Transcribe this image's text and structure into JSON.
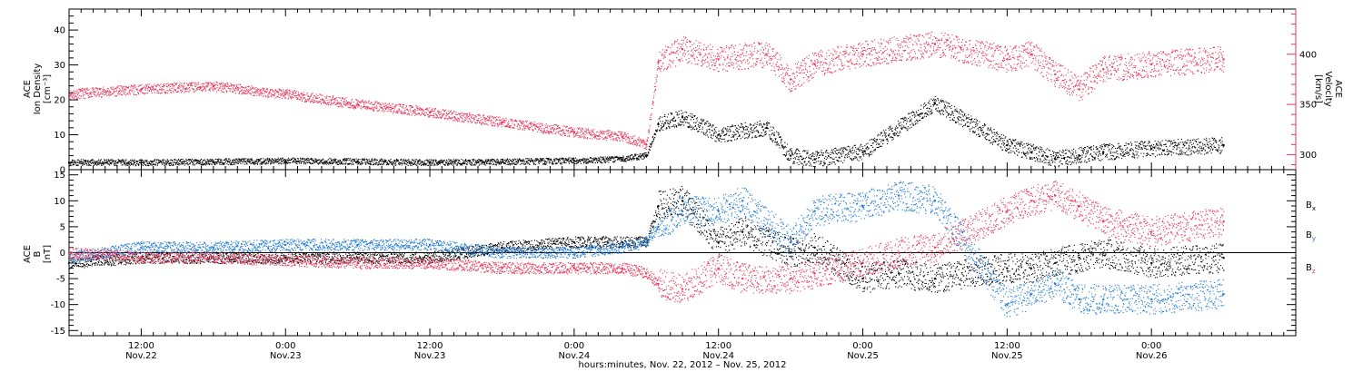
{
  "chart_data": [
    {
      "type": "scatter",
      "panel": "top",
      "left_axis": {
        "label_lines": [
          "ACE",
          "Ion Density",
          "[cm⁻³]"
        ],
        "ylim": [
          0,
          46
        ],
        "ticks": [
          0,
          10,
          20,
          30,
          40
        ],
        "tick_labels": [
          "0",
          "10",
          "20",
          "30",
          "40"
        ]
      },
      "right_axis": {
        "label_lines": [
          "ACE",
          "Velocity",
          "[km/s]"
        ],
        "ylim": [
          285,
          445
        ],
        "ticks": [
          300,
          350,
          400
        ],
        "tick_labels": [
          "300",
          "350",
          "400"
        ],
        "color": "#e8345a"
      },
      "x": [
        6,
        12,
        18,
        24,
        30,
        36,
        42,
        48,
        52,
        54,
        55,
        57,
        60,
        64,
        66,
        68,
        72,
        78,
        84,
        86,
        88,
        90,
        92,
        96,
        102
      ],
      "series": [
        {
          "key": "density",
          "color": "#000000",
          "axis": "left",
          "values": [
            2,
            2,
            2.2,
            2.5,
            2.3,
            2.0,
            2.2,
            2.5,
            3,
            4,
            13,
            15,
            10,
            12,
            4,
            3,
            5,
            19,
            7,
            5,
            3,
            4,
            5,
            6,
            7
          ]
        },
        {
          "key": "velocity",
          "color": "#e8345a",
          "axis": "right",
          "values": [
            360,
            365,
            368,
            360,
            350,
            342,
            332,
            322,
            318,
            310,
            392,
            405,
            395,
            400,
            375,
            390,
            400,
            410,
            395,
            400,
            380,
            365,
            385,
            390,
            395
          ]
        }
      ]
    },
    {
      "type": "scatter",
      "panel": "bottom",
      "left_axis": {
        "label_lines": [
          "ACE",
          "B",
          "[nT]"
        ],
        "ylim": [
          -16,
          16
        ],
        "ticks": [
          -15,
          -10,
          -5,
          0,
          5,
          10,
          15
        ],
        "tick_labels": [
          "-15",
          "-10",
          "-5",
          "0",
          "5",
          "10",
          "15"
        ]
      },
      "zero_line": true,
      "x": [
        6,
        12,
        18,
        24,
        30,
        36,
        42,
        48,
        52,
        54,
        55,
        57,
        60,
        62,
        66,
        68,
        72,
        75,
        78,
        84,
        86,
        88,
        90,
        92,
        96,
        102
      ],
      "series": [
        {
          "key": "Bx",
          "name": "B",
          "subscript": "x",
          "color": "#000000",
          "values": [
            -2,
            -1,
            -1,
            -1,
            -1,
            -1,
            1,
            2,
            2,
            2,
            9,
            10,
            2,
            4,
            0,
            1,
            -5,
            -4,
            -5,
            -3,
            -3,
            -2,
            -1,
            0,
            -2,
            -1
          ]
        },
        {
          "key": "By",
          "name": "B",
          "subscript": "y",
          "color": "#1a78d8",
          "values": [
            -1,
            1,
            1,
            1.5,
            1.5,
            1.5,
            0,
            0,
            1,
            2,
            5,
            8,
            8,
            10,
            2,
            8,
            9,
            11,
            10,
            -10,
            -8,
            -6,
            -9,
            -9,
            -9,
            -8
          ]
        },
        {
          "key": "Bz",
          "name": "B",
          "subscript": "z",
          "color": "#e8345a",
          "values": [
            0,
            -1,
            -1,
            -1.5,
            -2,
            -2,
            -3,
            -3,
            -3,
            -4,
            -6,
            -7,
            -3,
            -5,
            -5,
            -4,
            -2,
            0,
            1,
            8,
            10,
            11,
            9,
            6,
            4,
            6
          ]
        }
      ]
    }
  ],
  "x_axis": {
    "range": [
      6,
      108
    ],
    "major_ticks": [
      12,
      24,
      36,
      48,
      60,
      72,
      84,
      96
    ],
    "time_labels": [
      "12:00",
      "0:00",
      "12:00",
      "0:00",
      "12:00",
      "0:00",
      "12:00",
      "0:00"
    ],
    "date_labels": [
      "Nov.22",
      "Nov.23",
      "Nov.23",
      "Nov.24",
      "Nov.24",
      "Nov.25",
      "Nov.25",
      "Nov.26"
    ],
    "title": "hours:minutes, Nov. 22, 2012 – Nov. 25, 2012"
  },
  "colors": {
    "black": "#000000",
    "blue": "#1a78d8",
    "red": "#e8345a"
  }
}
